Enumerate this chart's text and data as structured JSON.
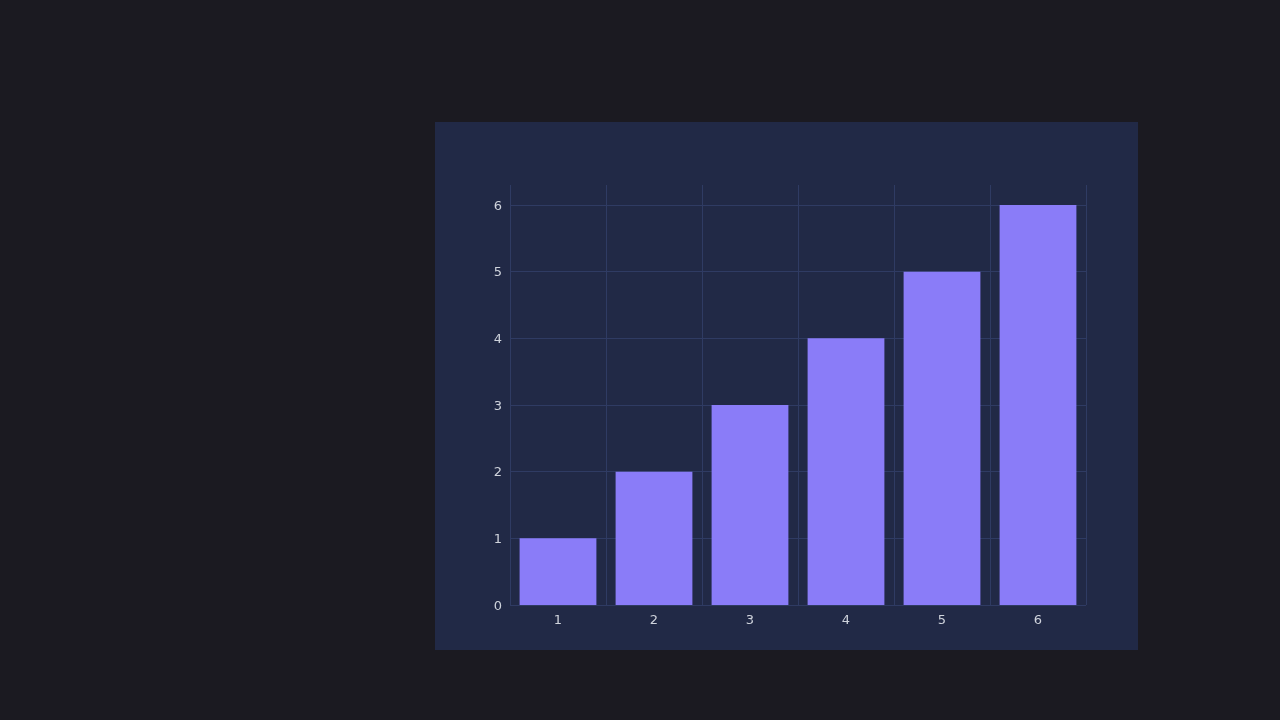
{
  "chart_data": {
    "type": "bar",
    "categories": [
      "1",
      "2",
      "3",
      "4",
      "5",
      "6"
    ],
    "series": [
      {
        "color": "#8a7cf8",
        "values": [
          1,
          2,
          3,
          4,
          5,
          6
        ]
      }
    ],
    "ylim": [
      0,
      6.3
    ],
    "yticks": [
      0,
      1,
      2,
      3,
      4,
      5,
      6
    ],
    "grid": true
  }
}
